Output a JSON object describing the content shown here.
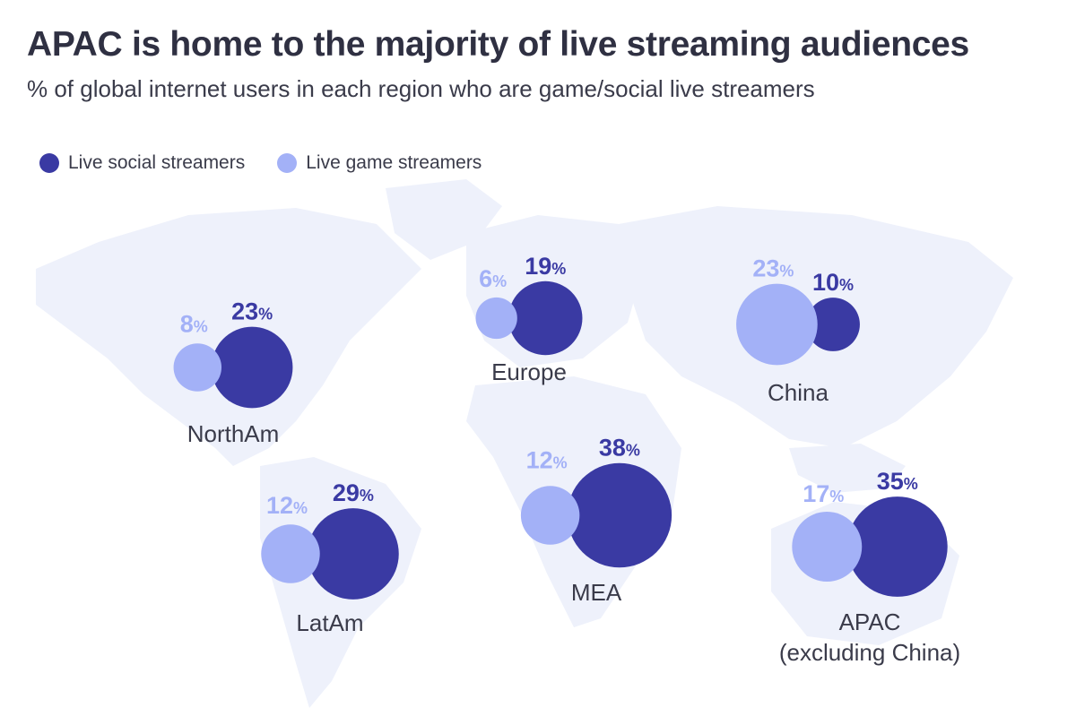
{
  "title": "APAC is home to the majority of live streaming audiences",
  "subtitle": "% of global internet users in each region who are game/social live streamers",
  "colors": {
    "social": "#3a3aa3",
    "game": "#a3b1f7",
    "map": "#eef1fb",
    "region_label": "#3a3b4a"
  },
  "legend": {
    "social_label": "Live social streamers",
    "game_label": "Live game streamers"
  },
  "chart_data": {
    "type": "bubble-map",
    "title": "APAC is home to the majority of live streaming audiences",
    "subtitle": "% of global internet users in each region who are game/social live streamers",
    "unit": "%",
    "series": [
      {
        "name": "Live social streamers",
        "key": "social"
      },
      {
        "name": "Live game streamers",
        "key": "game"
      }
    ],
    "regions": [
      {
        "id": "northam",
        "label_lines": [
          "NorthAm"
        ],
        "social": 23,
        "game": 8
      },
      {
        "id": "europe",
        "label_lines": [
          "Europe"
        ],
        "social": 19,
        "game": 6
      },
      {
        "id": "china",
        "label_lines": [
          "China"
        ],
        "social": 10,
        "game": 23
      },
      {
        "id": "latam",
        "label_lines": [
          "LatAm"
        ],
        "social": 29,
        "game": 12
      },
      {
        "id": "mea",
        "label_lines": [
          "MEA"
        ],
        "social": 38,
        "game": 12
      },
      {
        "id": "apac",
        "label_lines": [
          "APAC",
          "(excluding China)"
        ],
        "social": 35,
        "game": 17
      }
    ]
  }
}
